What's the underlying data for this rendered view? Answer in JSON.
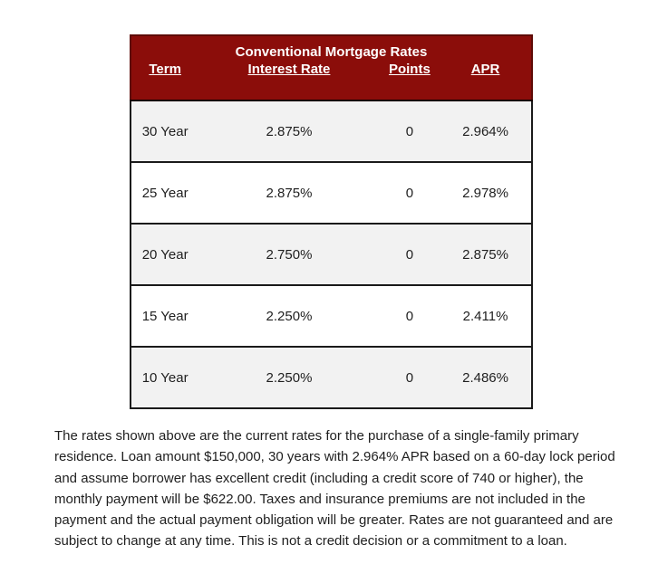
{
  "table": {
    "title": "Conventional Mortgage Rates",
    "columns": [
      "Term",
      "Interest Rate",
      "Points",
      "APR"
    ],
    "rows": [
      {
        "term": "30 Year",
        "interest_rate": "2.875%",
        "points": "0",
        "apr": "2.964%"
      },
      {
        "term": "25 Year",
        "interest_rate": "2.875%",
        "points": "0",
        "apr": "2.978%"
      },
      {
        "term": "20 Year",
        "interest_rate": "2.750%",
        "points": "0",
        "apr": "2.875%"
      },
      {
        "term": "15 Year",
        "interest_rate": "2.250%",
        "points": "0",
        "apr": "2.411%"
      },
      {
        "term": "10 Year",
        "interest_rate": "2.250%",
        "points": "0",
        "apr": "2.486%"
      }
    ]
  },
  "disclaimer": {
    "lines": [
      "The rates shown above are the current rates for the purchase of a single-family primary",
      "residence. Loan amount $150,000, 30 years with 2.964% APR based on a 60-day lock period",
      "and assume borrower has excellent credit (including a credit score of 740 or higher), the",
      "monthly payment will be $622.00. Taxes and insurance premiums are not included in the",
      "payment and the actual payment obligation will be greater. Rates are not guaranteed and are",
      "subject to change at any time. This is not a credit decision or a commitment to a loan."
    ]
  },
  "colors": {
    "header_bg": "#8B0D0A",
    "header_border": "#5E0B07",
    "header_text": "#FFFFFF",
    "row_alt_bg": "#F2F2F2",
    "row_bg": "#FFFFFF",
    "body_border": "#1A1A1A",
    "body_text": "#1F1F1F",
    "page_bg": "#FFFFFF"
  }
}
